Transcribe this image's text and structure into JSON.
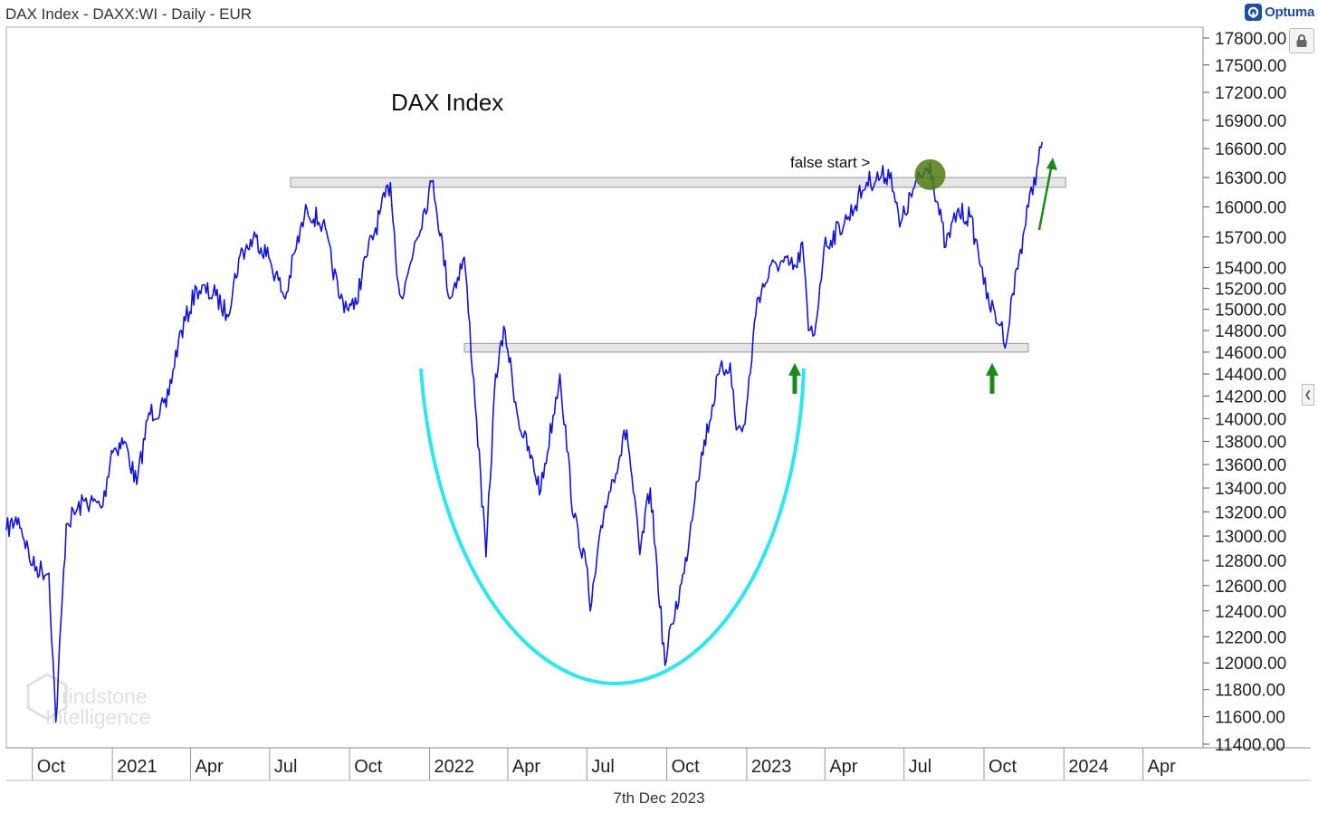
{
  "header": {
    "title": "DAX Index - DAXX:WI - Daily - EUR"
  },
  "brand": {
    "label": "Optuma",
    "icon": "optuma-logo-icon",
    "color": "#1d4f9c"
  },
  "footer": {
    "date": "7th Dec 2023"
  },
  "watermark": {
    "line1": "rindstone",
    "line2": "Intelligence"
  },
  "colors": {
    "price": "#1414d2",
    "cup": "#2ee6ee",
    "arrow": "#1a8a1a",
    "band_fill": "#e6e6e6",
    "band_stroke": "#9a9a9a",
    "marker": "#4f7a12"
  },
  "chart_data": {
    "type": "line",
    "title": "DAX Index",
    "ylim": [
      11400,
      17800
    ],
    "y_scale": "log",
    "y_ticks": [
      "17800.00",
      "17500.00",
      "17200.00",
      "16900.00",
      "16600.00",
      "16300.00",
      "16000.00",
      "15700.00",
      "15400.00",
      "15200.00",
      "15000.00",
      "14800.00",
      "14600.00",
      "14400.00",
      "14200.00",
      "14000.00",
      "13800.00",
      "13600.00",
      "13400.00",
      "13200.00",
      "13000.00",
      "12800.00",
      "12600.00",
      "12400.00",
      "12200.00",
      "12000.00",
      "11800.00",
      "11600.00",
      "11400.00"
    ],
    "x_ticks": [
      "Oct",
      "2021",
      "Apr",
      "Jul",
      "Oct",
      "2022",
      "Apr",
      "Jul",
      "Oct",
      "2023",
      "Apr",
      "Jul",
      "Oct",
      "2024",
      "Apr"
    ],
    "series": [
      {
        "values": [
          [
            "2020-09-01",
            13050
          ],
          [
            "2020-09-15",
            13150
          ],
          [
            "2020-10-01",
            12760
          ],
          [
            "2020-10-20",
            12700
          ],
          [
            "2020-10-28",
            11560
          ],
          [
            "2020-11-09",
            13100
          ],
          [
            "2020-11-30",
            13290
          ],
          [
            "2020-12-21",
            13250
          ],
          [
            "2020-12-31",
            13720
          ],
          [
            "2021-01-15",
            13800
          ],
          [
            "2021-01-29",
            13430
          ],
          [
            "2021-02-12",
            14050
          ],
          [
            "2021-03-04",
            14100
          ],
          [
            "2021-03-18",
            14700
          ],
          [
            "2021-04-08",
            15200
          ],
          [
            "2021-04-30",
            15130
          ],
          [
            "2021-05-13",
            14950
          ],
          [
            "2021-05-28",
            15520
          ],
          [
            "2021-06-15",
            15700
          ],
          [
            "2021-06-30",
            15500
          ],
          [
            "2021-07-19",
            15100
          ],
          [
            "2021-07-30",
            15550
          ],
          [
            "2021-08-13",
            15980
          ],
          [
            "2021-08-31",
            15830
          ],
          [
            "2021-09-20",
            15100
          ],
          [
            "2021-10-06",
            15000
          ],
          [
            "2021-10-20",
            15500
          ],
          [
            "2021-11-17",
            16250
          ],
          [
            "2021-11-26",
            15250
          ],
          [
            "2021-12-01",
            15100
          ],
          [
            "2021-12-15",
            15650
          ],
          [
            "2022-01-05",
            16270
          ],
          [
            "2022-01-24",
            15100
          ],
          [
            "2022-02-10",
            15500
          ],
          [
            "2022-02-24",
            14000
          ],
          [
            "2022-03-07",
            12830
          ],
          [
            "2022-03-18",
            14400
          ],
          [
            "2022-03-29",
            14800
          ],
          [
            "2022-04-13",
            14000
          ],
          [
            "2022-05-09",
            13380
          ],
          [
            "2022-05-31",
            14400
          ],
          [
            "2022-06-16",
            13150
          ],
          [
            "2022-06-30",
            12780
          ],
          [
            "2022-07-05",
            12400
          ],
          [
            "2022-07-22",
            13250
          ],
          [
            "2022-08-16",
            13900
          ],
          [
            "2022-08-31",
            12850
          ],
          [
            "2022-09-12",
            13400
          ],
          [
            "2022-09-29",
            11980
          ],
          [
            "2022-10-07",
            12300
          ],
          [
            "2022-10-21",
            12700
          ],
          [
            "2022-11-04",
            13450
          ],
          [
            "2022-11-30",
            14400
          ],
          [
            "2022-12-13",
            14500
          ],
          [
            "2022-12-20",
            13900
          ],
          [
            "2022-12-30",
            13950
          ],
          [
            "2023-01-13",
            15100
          ],
          [
            "2023-02-03",
            15450
          ],
          [
            "2023-02-28",
            15400
          ],
          [
            "2023-03-06",
            15650
          ],
          [
            "2023-03-13",
            14800
          ],
          [
            "2023-03-20",
            14760
          ],
          [
            "2023-03-31",
            15600
          ],
          [
            "2023-04-28",
            15900
          ],
          [
            "2023-05-19",
            16250
          ],
          [
            "2023-06-16",
            16350
          ],
          [
            "2023-06-26",
            15800
          ],
          [
            "2023-07-13",
            16200
          ],
          [
            "2023-07-31",
            16450
          ],
          [
            "2023-08-18",
            15600
          ],
          [
            "2023-08-31",
            15950
          ],
          [
            "2023-09-15",
            15900
          ],
          [
            "2023-09-29",
            15400
          ],
          [
            "2023-10-04",
            15100
          ],
          [
            "2023-10-20",
            14850
          ],
          [
            "2023-10-27",
            14700
          ],
          [
            "2023-11-03",
            15150
          ],
          [
            "2023-11-21",
            16000
          ],
          [
            "2023-12-01",
            16400
          ],
          [
            "2023-12-07",
            16670
          ]
        ]
      }
    ],
    "bands": [
      {
        "name": "resistance",
        "low": 16200,
        "high": 16300
      },
      {
        "name": "support",
        "low": 14600,
        "high": 14680
      }
    ],
    "annotations": [
      {
        "text": "false start >"
      }
    ]
  }
}
